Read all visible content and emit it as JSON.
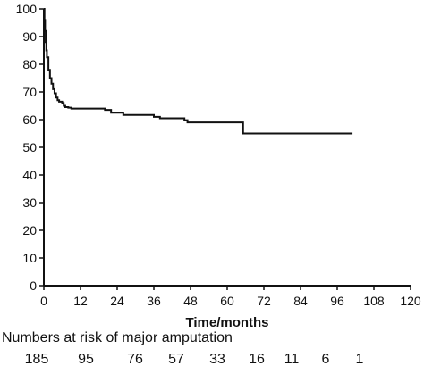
{
  "chart_data": {
    "type": "line",
    "title": "",
    "xlabel": "Time/months",
    "ylabel": "",
    "xlim": [
      0,
      120
    ],
    "ylim": [
      0,
      100
    ],
    "x_ticks": [
      "0",
      "12",
      "24",
      "36",
      "48",
      "60",
      "72",
      "84",
      "96",
      "108",
      "120"
    ],
    "y_ticks": [
      "0",
      "10",
      "20",
      "30",
      "40",
      "50",
      "60",
      "70",
      "80",
      "90",
      "100"
    ],
    "grid": false,
    "series": [
      {
        "step": true,
        "points": [
          [
            0,
            100
          ],
          [
            0.2,
            96
          ],
          [
            0.4,
            92
          ],
          [
            0.6,
            88
          ],
          [
            0.8,
            85
          ],
          [
            1,
            82.5
          ],
          [
            1.5,
            78
          ],
          [
            2,
            75
          ],
          [
            2.5,
            73
          ],
          [
            3,
            71
          ],
          [
            3.5,
            69.5
          ],
          [
            4,
            68
          ],
          [
            4.5,
            67
          ],
          [
            5,
            66.5
          ],
          [
            6,
            66
          ],
          [
            6.5,
            65
          ],
          [
            7,
            64.5
          ],
          [
            8,
            64.3
          ],
          [
            9,
            64
          ],
          [
            20,
            63.5
          ],
          [
            22,
            62.5
          ],
          [
            26,
            61.7
          ],
          [
            36,
            61
          ],
          [
            38,
            60.5
          ],
          [
            46,
            59.8
          ],
          [
            47,
            59
          ],
          [
            65,
            59
          ],
          [
            65.2,
            55
          ],
          [
            101,
            55
          ]
        ]
      }
    ]
  },
  "risk_table": {
    "caption": "Numbers at risk of major amputation",
    "values": [
      "185",
      "95",
      "76",
      "57",
      "33",
      "16",
      "11",
      "6",
      "1"
    ]
  }
}
